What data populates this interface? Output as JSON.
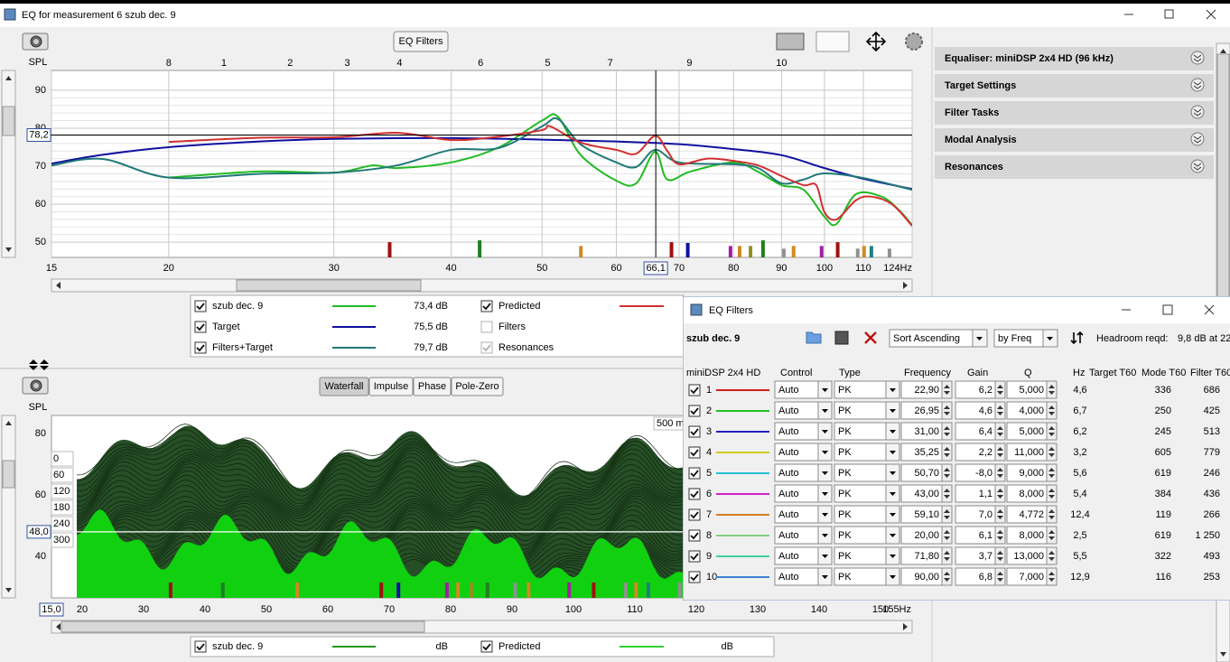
{
  "window": {
    "title": "EQ for measurement 6 szub dec. 9",
    "toolbar_button": "EQ Filters"
  },
  "side_panels": [
    "Equaliser: miniDSP 2x4 HD (96 kHz)",
    "Target Settings",
    "Filter Tasks",
    "Modal Analysis",
    "Resonances"
  ],
  "top_chart": {
    "type": "line",
    "y_label": "SPL",
    "log_x": true,
    "xlim": [
      15,
      124
    ],
    "ylim": [
      46,
      95.2
    ],
    "xticks": [
      15,
      20,
      30,
      40,
      50,
      60,
      70,
      80,
      90,
      100,
      110,
      {
        "value": 124,
        "label": "124Hz"
      }
    ],
    "yticks": [
      50,
      60,
      70,
      80,
      90
    ],
    "cursor_x": {
      "value": 66.1,
      "label": "66,1"
    },
    "cursor_y": {
      "value": 78.2,
      "label": "78,2"
    },
    "mode_markers": [
      {
        "label": "8",
        "freq": 20
      },
      {
        "label": "1",
        "freq": 22.9
      },
      {
        "label": "2",
        "freq": 26.95
      },
      {
        "label": "3",
        "freq": 31
      },
      {
        "label": "4",
        "freq": 35.25
      },
      {
        "label": "6",
        "freq": 43
      },
      {
        "label": "5",
        "freq": 50.7
      },
      {
        "label": "7",
        "freq": 59.1
      },
      {
        "label": "9",
        "freq": 71.8
      },
      {
        "label": "10",
        "freq": 90
      }
    ],
    "resonances": [
      {
        "freq": 34.4,
        "level": 50,
        "color": "#a01010"
      },
      {
        "freq": 42.9,
        "level": 50.5,
        "color": "#208020"
      },
      {
        "freq": 55,
        "level": 49,
        "color": "#d08a20"
      },
      {
        "freq": 68.7,
        "level": 50,
        "color": "#a01010"
      },
      {
        "freq": 71.5,
        "level": 49.8,
        "color": "#1010a0"
      },
      {
        "freq": 79.4,
        "level": 49,
        "color": "#a020a0"
      },
      {
        "freq": 81.2,
        "level": 49,
        "color": "#d08a20"
      },
      {
        "freq": 83.4,
        "level": 49,
        "color": "#909020"
      },
      {
        "freq": 86,
        "level": 50.5,
        "color": "#208020"
      },
      {
        "freq": 90.5,
        "level": 48.3,
        "color": "#909090"
      },
      {
        "freq": 92.7,
        "level": 49,
        "color": "#d08a20"
      },
      {
        "freq": 99.3,
        "level": 49,
        "color": "#a020a0"
      },
      {
        "freq": 103.3,
        "level": 50,
        "color": "#a01010"
      },
      {
        "freq": 108.5,
        "level": 48.3,
        "color": "#909090"
      },
      {
        "freq": 110.2,
        "level": 49,
        "color": "#d08a20"
      },
      {
        "freq": 112.2,
        "level": 49,
        "color": "#208080"
      },
      {
        "freq": 117.3,
        "level": 48.3,
        "color": "#909090"
      }
    ],
    "series": [
      {
        "name": "szub dec. 9",
        "color": "#22bb22",
        "level": "73,4 dB",
        "checked": true,
        "x": [
          20,
          25,
          30,
          33,
          35,
          40,
          45,
          50,
          52,
          55,
          60,
          63,
          66,
          68,
          72,
          80,
          85,
          90,
          95,
          100,
          103,
          108,
          115,
          120,
          124
        ],
        "values": [
          67,
          68.6,
          68.3,
          70.2,
          69.5,
          71,
          75,
          82,
          83,
          72.9,
          66.2,
          65.5,
          73.8,
          66.5,
          68.6,
          71,
          68.5,
          65,
          63.8,
          56.7,
          54.8,
          62.6,
          62,
          58.5,
          54.5
        ]
      },
      {
        "name": "Target",
        "color": "#1010a0",
        "level": "75,5 dB",
        "checked": true,
        "x": [
          15,
          17,
          20,
          25,
          30,
          40,
          50,
          60,
          70,
          80,
          90,
          100,
          110,
          124
        ],
        "values": [
          70.7,
          73,
          75,
          76.5,
          77.2,
          77.4,
          77,
          76.5,
          75.8,
          74.5,
          72.9,
          69.5,
          66.7,
          64
        ]
      },
      {
        "name": "Filters+Target",
        "color": "#207878",
        "level": "79,7 dB",
        "checked": true,
        "x": [
          15,
          17,
          20,
          25,
          30,
          35,
          40,
          45,
          50,
          52,
          55,
          60,
          63,
          66,
          70,
          80,
          85,
          90,
          95,
          100,
          110,
          124
        ],
        "values": [
          70.2,
          71.9,
          67,
          68,
          68.3,
          70.2,
          74.3,
          74.8,
          80.5,
          82.4,
          75.7,
          71,
          69.8,
          74.3,
          71,
          70.5,
          69.5,
          65.5,
          66.5,
          68.1,
          66.9,
          63.8
        ]
      },
      {
        "name": "Predicted",
        "color": "#d03030",
        "checked": true,
        "x": [
          20,
          25,
          30,
          35,
          40,
          45,
          50,
          51,
          55,
          60,
          63,
          66,
          68,
          70,
          75,
          80,
          85,
          90,
          95,
          98,
          100,
          103,
          108,
          112,
          118,
          124
        ],
        "values": [
          76.4,
          77.5,
          77.6,
          78.8,
          76.9,
          77.8,
          79.5,
          80.5,
          76.2,
          74.3,
          73.3,
          78,
          74,
          70.5,
          72,
          71.4,
          70.2,
          67.4,
          65,
          65,
          57.9,
          56,
          61,
          62,
          60,
          54.3
        ]
      }
    ],
    "legend_extra": [
      {
        "name": "Filters",
        "checked": false,
        "text_color": "#8a8ac8"
      },
      {
        "name": "Resonances",
        "checked": true,
        "text_color": "#a0a0a0"
      }
    ]
  },
  "bottom_chart": {
    "tabs": [
      "Waterfall",
      "Impulse",
      "Phase",
      "Pole-Zero"
    ],
    "active_tab": "Waterfall",
    "y_label": "SPL",
    "xlim": [
      15,
      155
    ],
    "ylim": [
      26.5,
      85.9
    ],
    "xticks": [
      20,
      30,
      40,
      50,
      60,
      70,
      80,
      90,
      100,
      110,
      120,
      130,
      140,
      150,
      {
        "value": 155,
        "label": "155Hz"
      }
    ],
    "yticks": [
      40,
      60,
      80
    ],
    "cursor_x": {
      "value": 15,
      "label": "15,0"
    },
    "cursor_y": {
      "value": 48,
      "label": "48,0"
    },
    "time_slices": [
      0,
      60,
      120,
      180,
      240,
      300
    ],
    "time_label": "500 m",
    "series": [
      {
        "name": "szub dec. 9",
        "color": "#1f9a1f",
        "unit": "dB",
        "checked": true
      },
      {
        "name": "Predicted",
        "color": "#30d030",
        "unit": "dB",
        "checked": true
      }
    ]
  },
  "dialog": {
    "title": "EQ Filters",
    "measurement": "szub dec. 9",
    "sort": "Sort Ascending",
    "sort_by": "by Freq",
    "headroom_label": "Headroom reqd:",
    "headroom_value": "9,8 dB at 22",
    "columns": [
      "miniDSP 2x4 HD",
      "Control",
      "Type",
      "Frequency",
      "Gain",
      "Q",
      "Hz",
      "Target T60",
      "Mode T60",
      "Filter T60"
    ],
    "rows": [
      {
        "enabled": true,
        "number": "1",
        "color": "#d02020",
        "control": "Auto",
        "type": "PK",
        "frequency": "22,90",
        "gain": "6,2",
        "q": "5,000",
        "hz": "4,6",
        "mode_t60": "336",
        "filter_t60": "686"
      },
      {
        "enabled": true,
        "number": "2",
        "color": "#20c020",
        "control": "Auto",
        "type": "PK",
        "frequency": "26,95",
        "gain": "4,6",
        "q": "4,000",
        "hz": "6,7",
        "mode_t60": "250",
        "filter_t60": "425"
      },
      {
        "enabled": true,
        "number": "3",
        "color": "#2020c0",
        "control": "Auto",
        "type": "PK",
        "frequency": "31,00",
        "gain": "6,4",
        "q": "5,000",
        "hz": "6,2",
        "mode_t60": "245",
        "filter_t60": "513"
      },
      {
        "enabled": true,
        "number": "4",
        "color": "#d0c820",
        "control": "Auto",
        "type": "PK",
        "frequency": "35,25",
        "gain": "2,2",
        "q": "11,000",
        "hz": "3,2",
        "mode_t60": "605",
        "filter_t60": "779"
      },
      {
        "enabled": true,
        "number": "5",
        "color": "#20c0d0",
        "control": "Auto",
        "type": "PK",
        "frequency": "50,70",
        "gain": "-8,0",
        "q": "9,000",
        "hz": "5,6",
        "mode_t60": "619",
        "filter_t60": "246"
      },
      {
        "enabled": true,
        "number": "6",
        "color": "#d020d0",
        "control": "Auto",
        "type": "PK",
        "frequency": "43,00",
        "gain": "1,1",
        "q": "8,000",
        "hz": "5,4",
        "mode_t60": "384",
        "filter_t60": "436"
      },
      {
        "enabled": true,
        "number": "7",
        "color": "#d08020",
        "control": "Auto",
        "type": "PK",
        "frequency": "59,10",
        "gain": "7,0",
        "q": "4,772",
        "hz": "12,4",
        "mode_t60": "119",
        "filter_t60": "266"
      },
      {
        "enabled": true,
        "number": "8",
        "color": "#80d080",
        "control": "Auto",
        "type": "PK",
        "frequency": "20,00",
        "gain": "6,1",
        "q": "8,000",
        "hz": "2,5",
        "mode_t60": "619",
        "filter_t60": "1 250"
      },
      {
        "enabled": true,
        "number": "9",
        "color": "#40d0a0",
        "control": "Auto",
        "type": "PK",
        "frequency": "71,80",
        "gain": "3,7",
        "q": "13,000",
        "hz": "5,5",
        "mode_t60": "322",
        "filter_t60": "493"
      },
      {
        "enabled": true,
        "number": "10",
        "color": "#4080d0",
        "control": "Auto",
        "type": "PK",
        "frequency": "90,00",
        "gain": "6,8",
        "q": "7,000",
        "hz": "12,9",
        "mode_t60": "116",
        "filter_t60": "253"
      }
    ]
  }
}
